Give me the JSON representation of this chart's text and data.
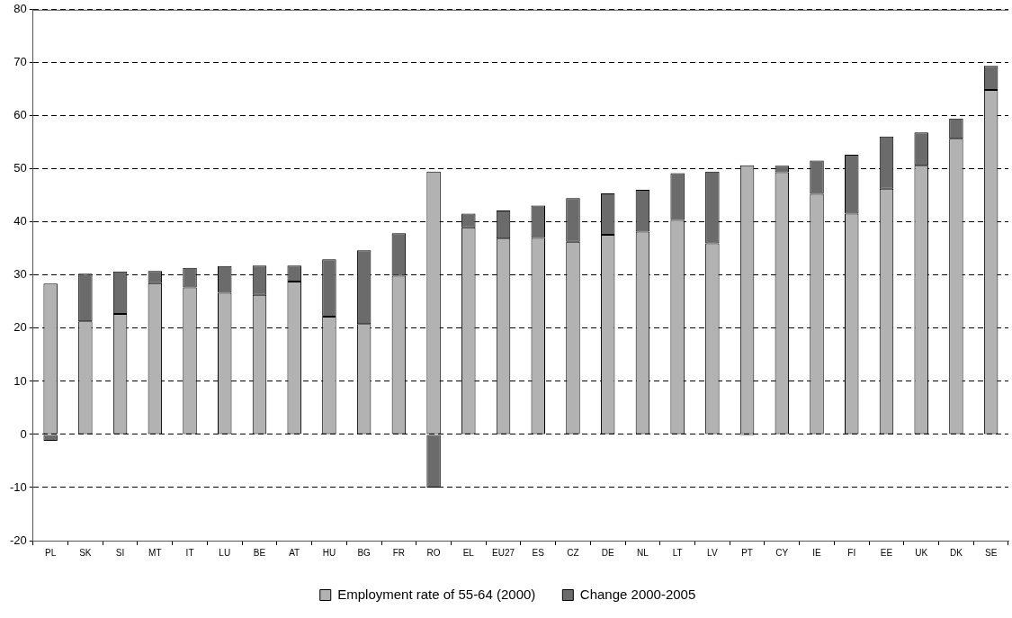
{
  "chart_data": {
    "type": "bar",
    "stacked": true,
    "categories": [
      "PL",
      "SK",
      "SI",
      "MT",
      "IT",
      "LU",
      "BE",
      "AT",
      "HU",
      "BG",
      "FR",
      "RO",
      "EL",
      "EU27",
      "ES",
      "CZ",
      "DE",
      "NL",
      "LT",
      "LV",
      "PT",
      "CY",
      "IE",
      "FI",
      "EE",
      "UK",
      "DK",
      "SE"
    ],
    "series": [
      {
        "name": "Employment rate of 55-64 (2000)",
        "color": "#b2b2b2",
        "values": [
          28.4,
          21.3,
          22.7,
          28.5,
          27.7,
          26.7,
          26.3,
          28.8,
          22.2,
          20.8,
          29.9,
          49.5,
          39.0,
          36.9,
          37.0,
          36.3,
          37.6,
          38.2,
          40.4,
          36.0,
          50.7,
          49.4,
          45.3,
          41.6,
          46.3,
          50.6,
          55.7,
          64.9
        ]
      },
      {
        "name": "Change 2000-2005",
        "color": "#6b6b6b",
        "values": [
          -1.2,
          9.0,
          8.0,
          2.3,
          3.7,
          5.0,
          5.5,
          3.0,
          10.8,
          13.9,
          8.0,
          -10.0,
          2.6,
          5.3,
          6.1,
          8.2,
          7.8,
          7.9,
          8.8,
          13.5,
          -0.2,
          1.2,
          6.3,
          11.1,
          9.8,
          6.3,
          3.8,
          4.5
        ]
      }
    ],
    "ylim": [
      -20,
      80
    ],
    "yticks": [
      -20,
      -10,
      0,
      10,
      20,
      30,
      40,
      50,
      60,
      70,
      80
    ],
    "grid": "y",
    "line_style": "dashed",
    "legend": "bottom"
  }
}
